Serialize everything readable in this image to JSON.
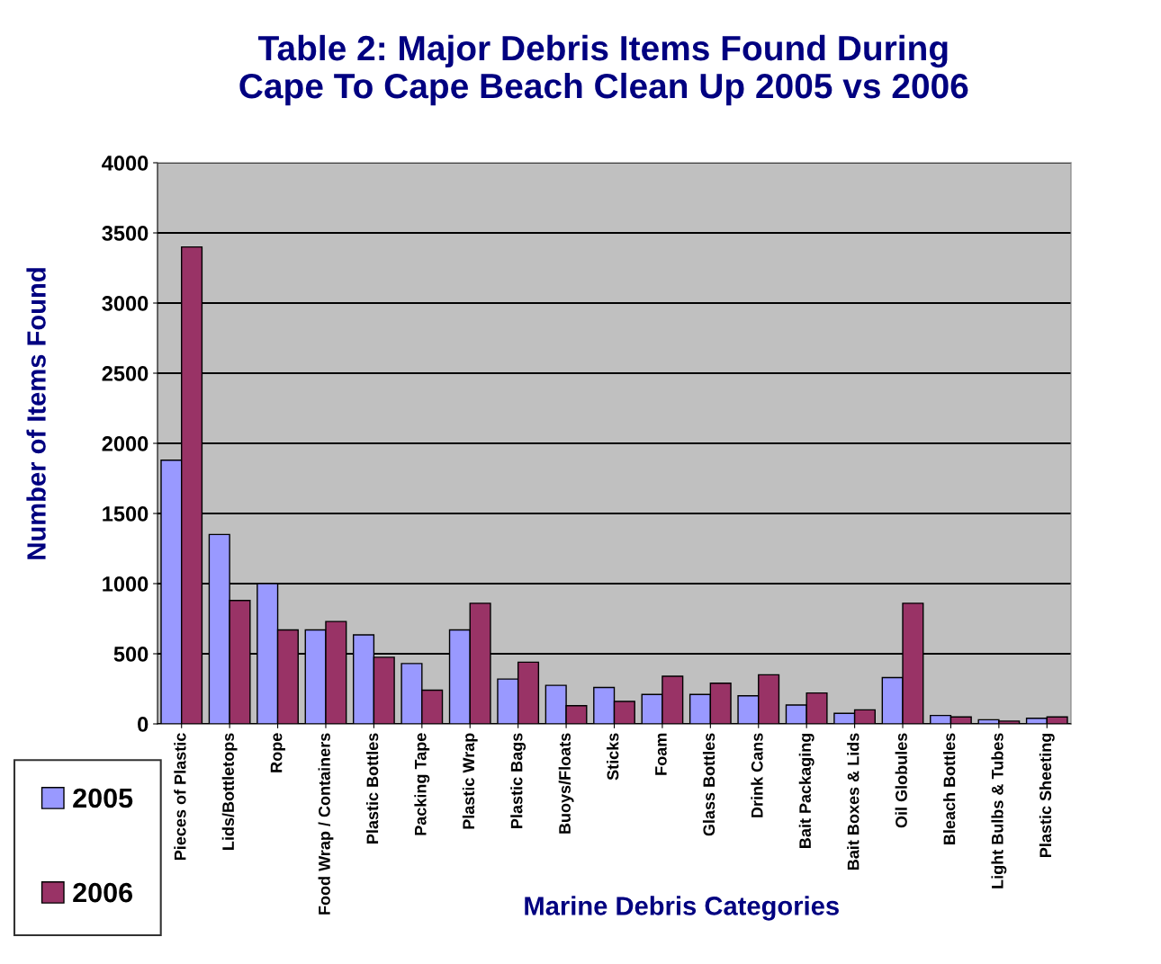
{
  "chart_data": {
    "type": "bar",
    "title": "Table 2: Major Debris Items Found During\nCape To Cape Beach Clean Up 2005 vs 2006",
    "xlabel": "Marine Debris Categories",
    "ylabel": "Number of Items Found",
    "categories": [
      "Pieces of Plastic",
      "Lids/Bottletops",
      "Rope",
      "Food Wrap / Containers",
      "Plastic Bottles",
      "Packing Tape",
      "Plastic Wrap",
      "Plastic Bags",
      "Buoys/Floats",
      "Sticks",
      "Foam",
      "Glass Bottles",
      "Drink Cans",
      "Bait Packaging",
      "Bait Boxes & Lids",
      "Oil Globules",
      "Bleach Bottles",
      "Light Bulbs & Tubes",
      "Plastic Sheeting"
    ],
    "series": [
      {
        "name": "2005",
        "color": "#9999ff",
        "values": [
          1880,
          1350,
          1000,
          670,
          635,
          430,
          670,
          320,
          275,
          260,
          210,
          210,
          200,
          135,
          75,
          330,
          60,
          30,
          40
        ]
      },
      {
        "name": "2006",
        "color": "#993366",
        "values": [
          3400,
          880,
          670,
          730,
          475,
          240,
          860,
          440,
          130,
          160,
          340,
          290,
          350,
          220,
          100,
          860,
          50,
          20,
          50
        ]
      }
    ],
    "ylim": [
      0,
      4000
    ],
    "yticks": [
      0,
      500,
      1000,
      1500,
      2000,
      2500,
      3000,
      3500,
      4000
    ],
    "grid": "y",
    "legend": "bottom left"
  }
}
